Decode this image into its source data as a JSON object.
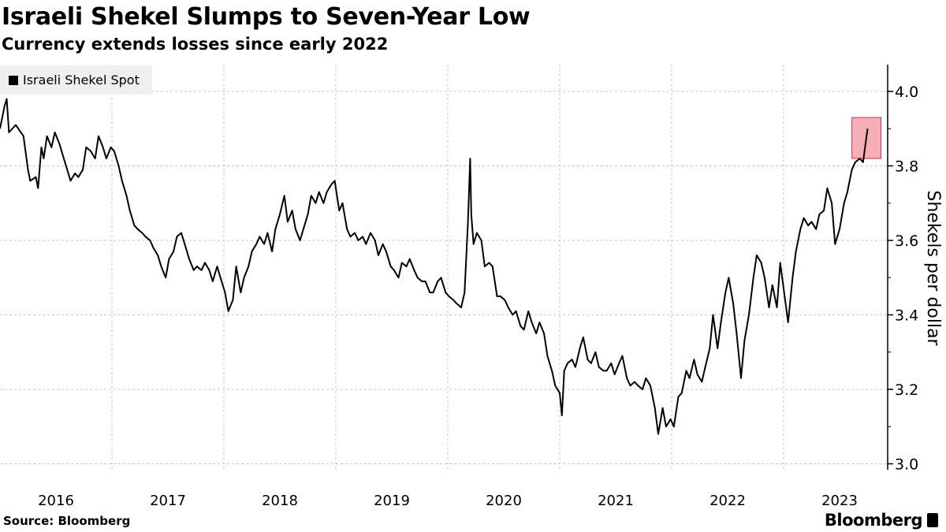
{
  "chart_data": {
    "type": "line",
    "title": "Israeli Shekel Slumps to Seven-Year Low",
    "subtitle": "Currency extends losses since early 2022",
    "xlabel": "",
    "ylabel": "Shekels per dollar",
    "xlim": [
      2016.0,
      2023.92
    ],
    "ylim": [
      3.0,
      4.05
    ],
    "x_tick_labels": [
      "2016",
      "2017",
      "2018",
      "2019",
      "2020",
      "2021",
      "2022",
      "2023"
    ],
    "y_ticks": [
      3.0,
      3.2,
      3.4,
      3.6,
      3.8,
      4.0
    ],
    "y_tick_labels": [
      "3.0",
      "3.2",
      "3.4",
      "3.6",
      "3.8",
      "4.0"
    ],
    "y_axis_position": "right",
    "grid": true,
    "legend": {
      "position": "top-left",
      "entries": [
        "Israeli Shekel Spot"
      ]
    },
    "highlight": {
      "x_range": [
        2023.61,
        2023.87
      ],
      "y_range": [
        3.82,
        3.93
      ],
      "color": "#f4a0aa"
    },
    "series": [
      {
        "name": "Israeli Shekel Spot",
        "color": "#000000",
        "x": [
          2016.0,
          2016.04,
          2016.06,
          2016.08,
          2016.14,
          2016.21,
          2016.25,
          2016.27,
          2016.32,
          2016.34,
          2016.37,
          2016.39,
          2016.42,
          2016.46,
          2016.49,
          2016.53,
          2016.56,
          2016.6,
          2016.63,
          2016.67,
          2016.7,
          2016.74,
          2016.77,
          2016.81,
          2016.85,
          2016.88,
          2016.92,
          2016.95,
          2016.99,
          2017.02,
          2017.06,
          2017.09,
          2017.13,
          2017.16,
          2017.2,
          2017.23,
          2017.27,
          2017.3,
          2017.34,
          2017.37,
          2017.41,
          2017.44,
          2017.48,
          2017.51,
          2017.55,
          2017.58,
          2017.62,
          2017.65,
          2017.69,
          2017.73,
          2017.76,
          2017.8,
          2017.83,
          2017.87,
          2017.9,
          2017.94,
          2017.97,
          2018.01,
          2018.04,
          2018.08,
          2018.11,
          2018.15,
          2018.18,
          2018.22,
          2018.25,
          2018.29,
          2018.32,
          2018.36,
          2018.39,
          2018.43,
          2018.46,
          2018.5,
          2018.54,
          2018.57,
          2018.61,
          2018.64,
          2018.68,
          2018.71,
          2018.75,
          2018.78,
          2018.82,
          2018.85,
          2018.89,
          2018.92,
          2018.96,
          2018.99,
          2019.03,
          2019.06,
          2019.1,
          2019.13,
          2019.17,
          2019.2,
          2019.24,
          2019.27,
          2019.31,
          2019.35,
          2019.38,
          2019.42,
          2019.45,
          2019.49,
          2019.52,
          2019.56,
          2019.59,
          2019.63,
          2019.66,
          2019.7,
          2019.73,
          2019.77,
          2019.8,
          2019.84,
          2019.87,
          2019.91,
          2019.94,
          2019.98,
          2020.01,
          2020.05,
          2020.08,
          2020.12,
          2020.15,
          2020.18,
          2020.2,
          2020.21,
          2020.23,
          2020.26,
          2020.3,
          2020.33,
          2020.37,
          2020.4,
          2020.44,
          2020.47,
          2020.51,
          2020.54,
          2020.58,
          2020.61,
          2020.65,
          2020.68,
          2020.72,
          2020.75,
          2020.79,
          2020.82,
          2020.86,
          2020.89,
          2020.93,
          2020.96,
          2021.0,
          2021.02,
          2021.04,
          2021.07,
          2021.11,
          2021.14,
          2021.18,
          2021.21,
          2021.25,
          2021.28,
          2021.32,
          2021.35,
          2021.39,
          2021.42,
          2021.46,
          2021.49,
          2021.53,
          2021.56,
          2021.6,
          2021.63,
          2021.67,
          2021.7,
          2021.74,
          2021.77,
          2021.81,
          2021.85,
          2021.88,
          2021.92,
          2021.95,
          2021.99,
          2022.02,
          2022.06,
          2022.09,
          2022.13,
          2022.16,
          2022.2,
          2022.23,
          2022.27,
          2022.3,
          2022.34,
          2022.37,
          2022.41,
          2022.44,
          2022.48,
          2022.51,
          2022.55,
          2022.58,
          2022.62,
          2022.65,
          2022.69,
          2022.73,
          2022.76,
          2022.8,
          2022.83,
          2022.87,
          2022.9,
          2022.94,
          2022.97,
          2023.04,
          2023.08,
          2023.11,
          2023.15,
          2023.18,
          2023.22,
          2023.25,
          2023.29,
          2023.32,
          2023.36,
          2023.39,
          2023.43,
          2023.46,
          2023.5,
          2023.54,
          2023.57,
          2023.61,
          2023.64,
          2023.68,
          2023.71,
          2023.75
        ],
        "y": [
          3.9,
          3.96,
          3.98,
          3.89,
          3.91,
          3.88,
          3.79,
          3.76,
          3.77,
          3.74,
          3.85,
          3.82,
          3.88,
          3.85,
          3.89,
          3.86,
          3.83,
          3.79,
          3.76,
          3.78,
          3.77,
          3.79,
          3.85,
          3.84,
          3.82,
          3.88,
          3.85,
          3.82,
          3.85,
          3.84,
          3.8,
          3.76,
          3.72,
          3.68,
          3.64,
          3.63,
          3.62,
          3.61,
          3.6,
          3.58,
          3.56,
          3.53,
          3.5,
          3.55,
          3.57,
          3.61,
          3.62,
          3.59,
          3.55,
          3.52,
          3.53,
          3.52,
          3.54,
          3.52,
          3.49,
          3.53,
          3.5,
          3.46,
          3.41,
          3.44,
          3.53,
          3.46,
          3.5,
          3.53,
          3.57,
          3.59,
          3.61,
          3.59,
          3.62,
          3.57,
          3.63,
          3.67,
          3.72,
          3.65,
          3.68,
          3.63,
          3.6,
          3.63,
          3.67,
          3.72,
          3.7,
          3.73,
          3.7,
          3.73,
          3.75,
          3.76,
          3.68,
          3.7,
          3.63,
          3.61,
          3.62,
          3.6,
          3.61,
          3.59,
          3.62,
          3.6,
          3.56,
          3.59,
          3.57,
          3.53,
          3.52,
          3.5,
          3.54,
          3.53,
          3.55,
          3.52,
          3.5,
          3.49,
          3.49,
          3.46,
          3.46,
          3.49,
          3.5,
          3.46,
          3.45,
          3.44,
          3.43,
          3.42,
          3.46,
          3.65,
          3.82,
          3.67,
          3.59,
          3.62,
          3.6,
          3.53,
          3.54,
          3.53,
          3.45,
          3.45,
          3.44,
          3.42,
          3.4,
          3.41,
          3.37,
          3.36,
          3.41,
          3.38,
          3.35,
          3.38,
          3.35,
          3.29,
          3.25,
          3.21,
          3.19,
          3.13,
          3.25,
          3.27,
          3.28,
          3.26,
          3.31,
          3.34,
          3.28,
          3.27,
          3.3,
          3.26,
          3.25,
          3.25,
          3.27,
          3.24,
          3.27,
          3.29,
          3.23,
          3.21,
          3.22,
          3.21,
          3.2,
          3.23,
          3.21,
          3.15,
          3.08,
          3.15,
          3.1,
          3.12,
          3.1,
          3.18,
          3.19,
          3.25,
          3.23,
          3.28,
          3.24,
          3.22,
          3.26,
          3.31,
          3.4,
          3.31,
          3.38,
          3.46,
          3.5,
          3.43,
          3.35,
          3.23,
          3.33,
          3.4,
          3.5,
          3.56,
          3.54,
          3.5,
          3.42,
          3.48,
          3.42,
          3.54,
          3.38,
          3.5,
          3.57,
          3.63,
          3.66,
          3.64,
          3.65,
          3.63,
          3.67,
          3.68,
          3.74,
          3.7,
          3.59,
          3.63,
          3.7,
          3.73,
          3.79,
          3.81,
          3.82,
          3.81,
          3.9
        ]
      }
    ]
  },
  "footer": {
    "source": "Source: Bloomberg",
    "logo": "Bloomberg"
  }
}
